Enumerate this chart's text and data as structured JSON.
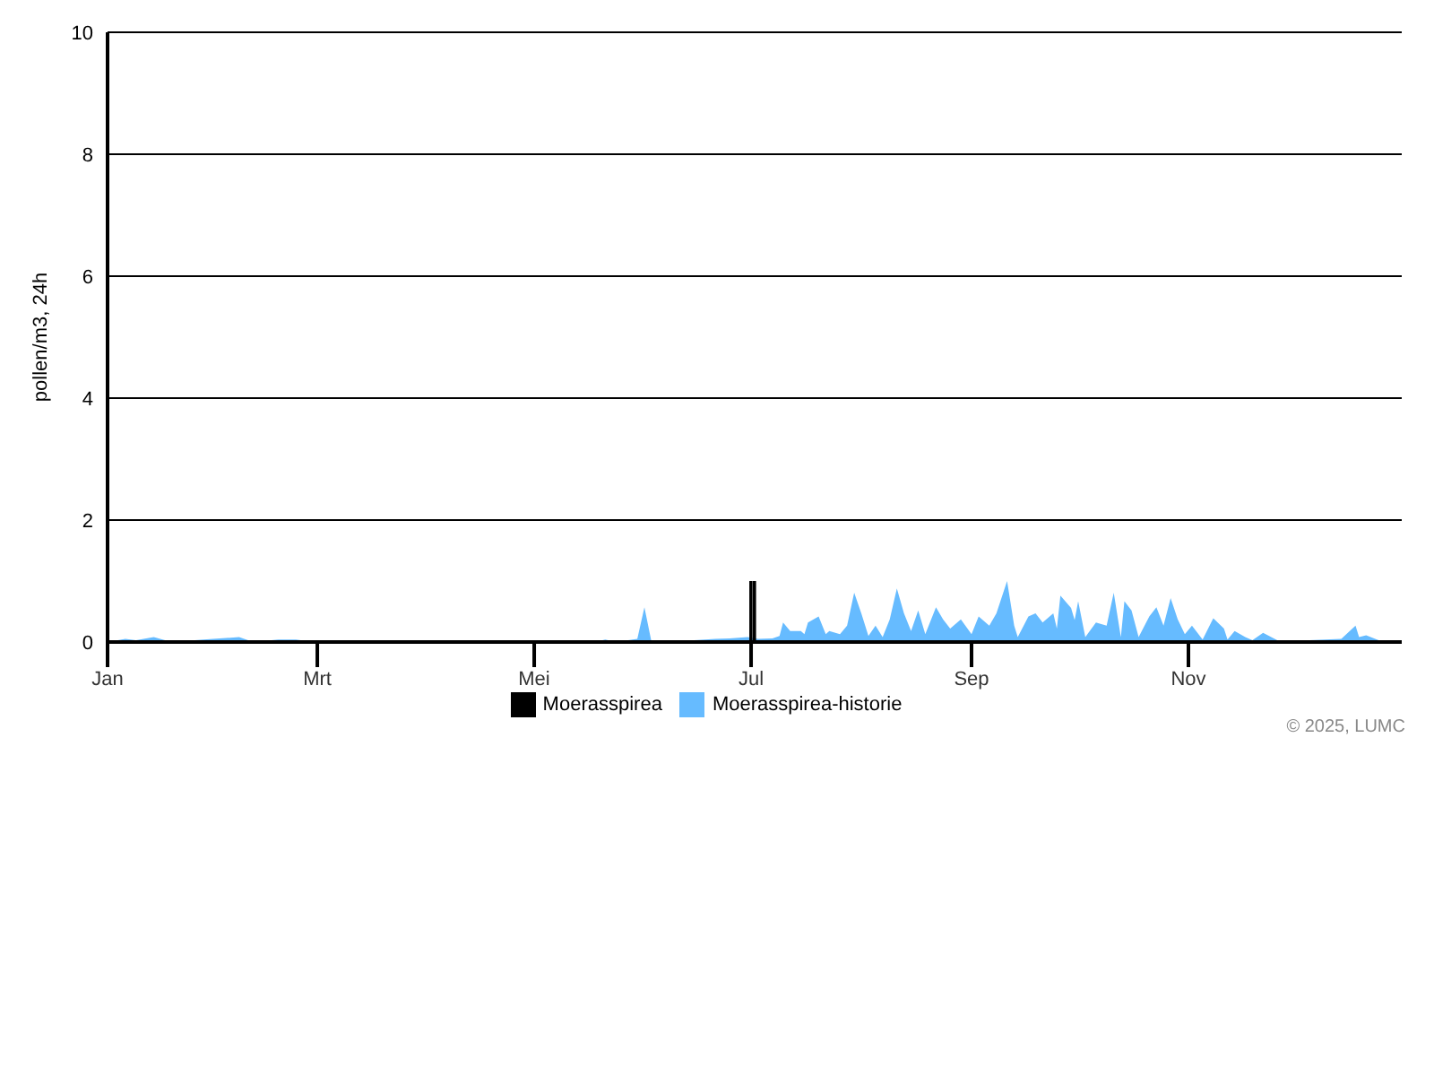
{
  "chart_data": {
    "type": "area",
    "ylabel": "pollen/m3, 24h",
    "xlim": [
      "--01-01",
      "--12-31"
    ],
    "xticks": [
      {
        "value": "--01-01",
        "label": "Jan"
      },
      {
        "value": "--03-01",
        "label": "Mrt"
      },
      {
        "value": "--05-01",
        "label": "Mei"
      },
      {
        "value": "--07-01",
        "label": "Jul"
      },
      {
        "value": "--09-01",
        "label": "Sep"
      },
      {
        "value": "--11-01",
        "label": "Nov"
      }
    ],
    "ylim": [
      0,
      10
    ],
    "yticks": [
      0,
      2,
      4,
      6,
      8,
      10
    ],
    "grid": "y",
    "legend": "bottom",
    "annotations": [
      "© 2025, LUMC"
    ],
    "series": [
      {
        "name": "Moerasspirea",
        "type": "bar",
        "color": "#000000",
        "x": [
          "--07-01",
          "--07-02"
        ],
        "values": [
          1,
          1
        ]
      },
      {
        "name": "Moerasspirea-historie",
        "color": "#66bbff",
        "x": [
          "--01-01",
          "--01-06",
          "--01-09",
          "--01-14",
          "--01-19",
          "--01-28",
          "--02-07",
          "--02-11",
          "--02-18",
          "--02-23",
          "--02-28",
          "--05-18",
          "--05-21",
          "--05-24",
          "--05-30",
          "--06-01",
          "--06-03",
          "--06-10",
          "--06-15",
          "--06-21",
          "--06-25",
          "--06-30",
          "--07-03",
          "--07-07",
          "--07-09",
          "--07-10",
          "--07-12",
          "--07-15",
          "--07-16",
          "--07-17",
          "--07-20",
          "--07-22",
          "--07-23",
          "--07-26",
          "--07-28",
          "--07-30",
          "--08-01",
          "--08-03",
          "--08-05",
          "--08-07",
          "--08-09",
          "--08-11",
          "--08-13",
          "--08-15",
          "--08-17",
          "--08-19",
          "--08-22",
          "--08-24",
          "--08-26",
          "--08-29",
          "--09-01",
          "--09-03",
          "--09-06",
          "--09-08",
          "--09-11",
          "--09-13",
          "--09-14",
          "--09-17",
          "--09-19",
          "--09-21",
          "--09-24",
          "--09-25",
          "--09-26",
          "--09-29",
          "--09-30",
          "--10-01",
          "--10-03",
          "--10-06",
          "--10-09",
          "--10-11",
          "--10-13",
          "--10-14",
          "--10-16",
          "--10-18",
          "--10-21",
          "--10-23",
          "--10-25",
          "--10-27",
          "--10-29",
          "--10-31",
          "--11-02",
          "--11-05",
          "--11-08",
          "--11-11",
          "--11-12",
          "--11-14",
          "--11-17",
          "--11-19",
          "--11-22",
          "--11-26",
          "--11-28",
          "--12-05",
          "--12-14",
          "--12-18",
          "--12-19",
          "--12-21",
          "--12-25",
          "--12-28",
          "--12-31"
        ],
        "values": [
          0,
          0.05,
          0.03,
          0.08,
          0,
          0.04,
          0.08,
          0,
          0.04,
          0.04,
          0,
          0,
          0.04,
          0,
          0.05,
          0.57,
          0,
          0.03,
          0.03,
          0.05,
          0.06,
          0.08,
          0.05,
          0.06,
          0.1,
          0.32,
          0.18,
          0.18,
          0.13,
          0.32,
          0.42,
          0.13,
          0.18,
          0.13,
          0.27,
          0.81,
          0.47,
          0.1,
          0.27,
          0.08,
          0.37,
          0.88,
          0.47,
          0.18,
          0.52,
          0.13,
          0.57,
          0.37,
          0.22,
          0.37,
          0.13,
          0.42,
          0.27,
          0.47,
          1.0,
          0.27,
          0.08,
          0.42,
          0.47,
          0.32,
          0.47,
          0.22,
          0.76,
          0.56,
          0.36,
          0.67,
          0.08,
          0.32,
          0.27,
          0.81,
          0.08,
          0.67,
          0.52,
          0.08,
          0.42,
          0.57,
          0.27,
          0.72,
          0.37,
          0.13,
          0.27,
          0.04,
          0.39,
          0.22,
          0.04,
          0.18,
          0.08,
          0.03,
          0.15,
          0.03,
          0.03,
          0.03,
          0.05,
          0.27,
          0.08,
          0.11,
          0.02,
          0.03,
          0
        ]
      }
    ]
  }
}
